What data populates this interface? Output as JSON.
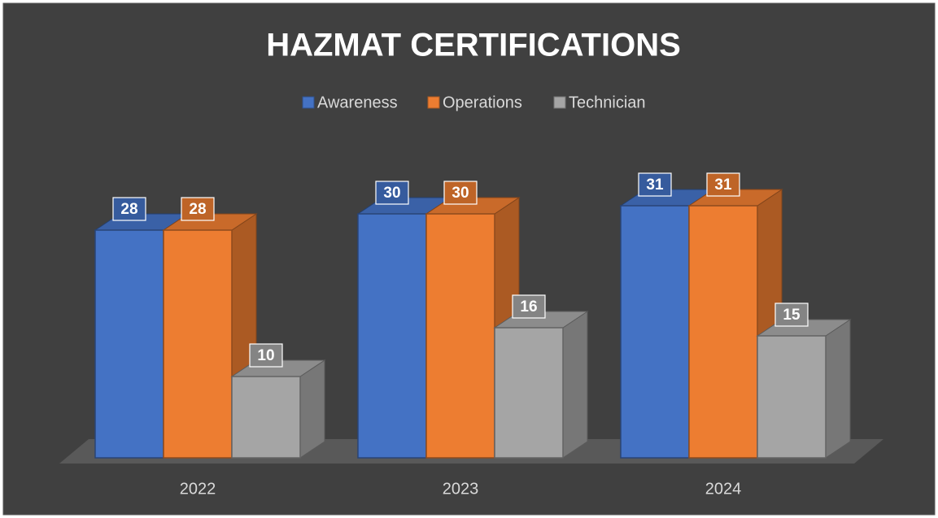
{
  "chart_data": {
    "type": "bar3d",
    "title": "HAZMAT CERTIFICATIONS",
    "categories": [
      "2022",
      "2023",
      "2024"
    ],
    "series": [
      {
        "name": "Awareness",
        "color": "#4472c4",
        "values": [
          28,
          30,
          31
        ]
      },
      {
        "name": "Operations",
        "color": "#ed7d31",
        "values": [
          28,
          30,
          31
        ]
      },
      {
        "name": "Technician",
        "color": "#a5a5a5",
        "values": [
          10,
          16,
          15
        ]
      }
    ],
    "ylim": [
      0,
      35
    ],
    "legend": "top"
  }
}
